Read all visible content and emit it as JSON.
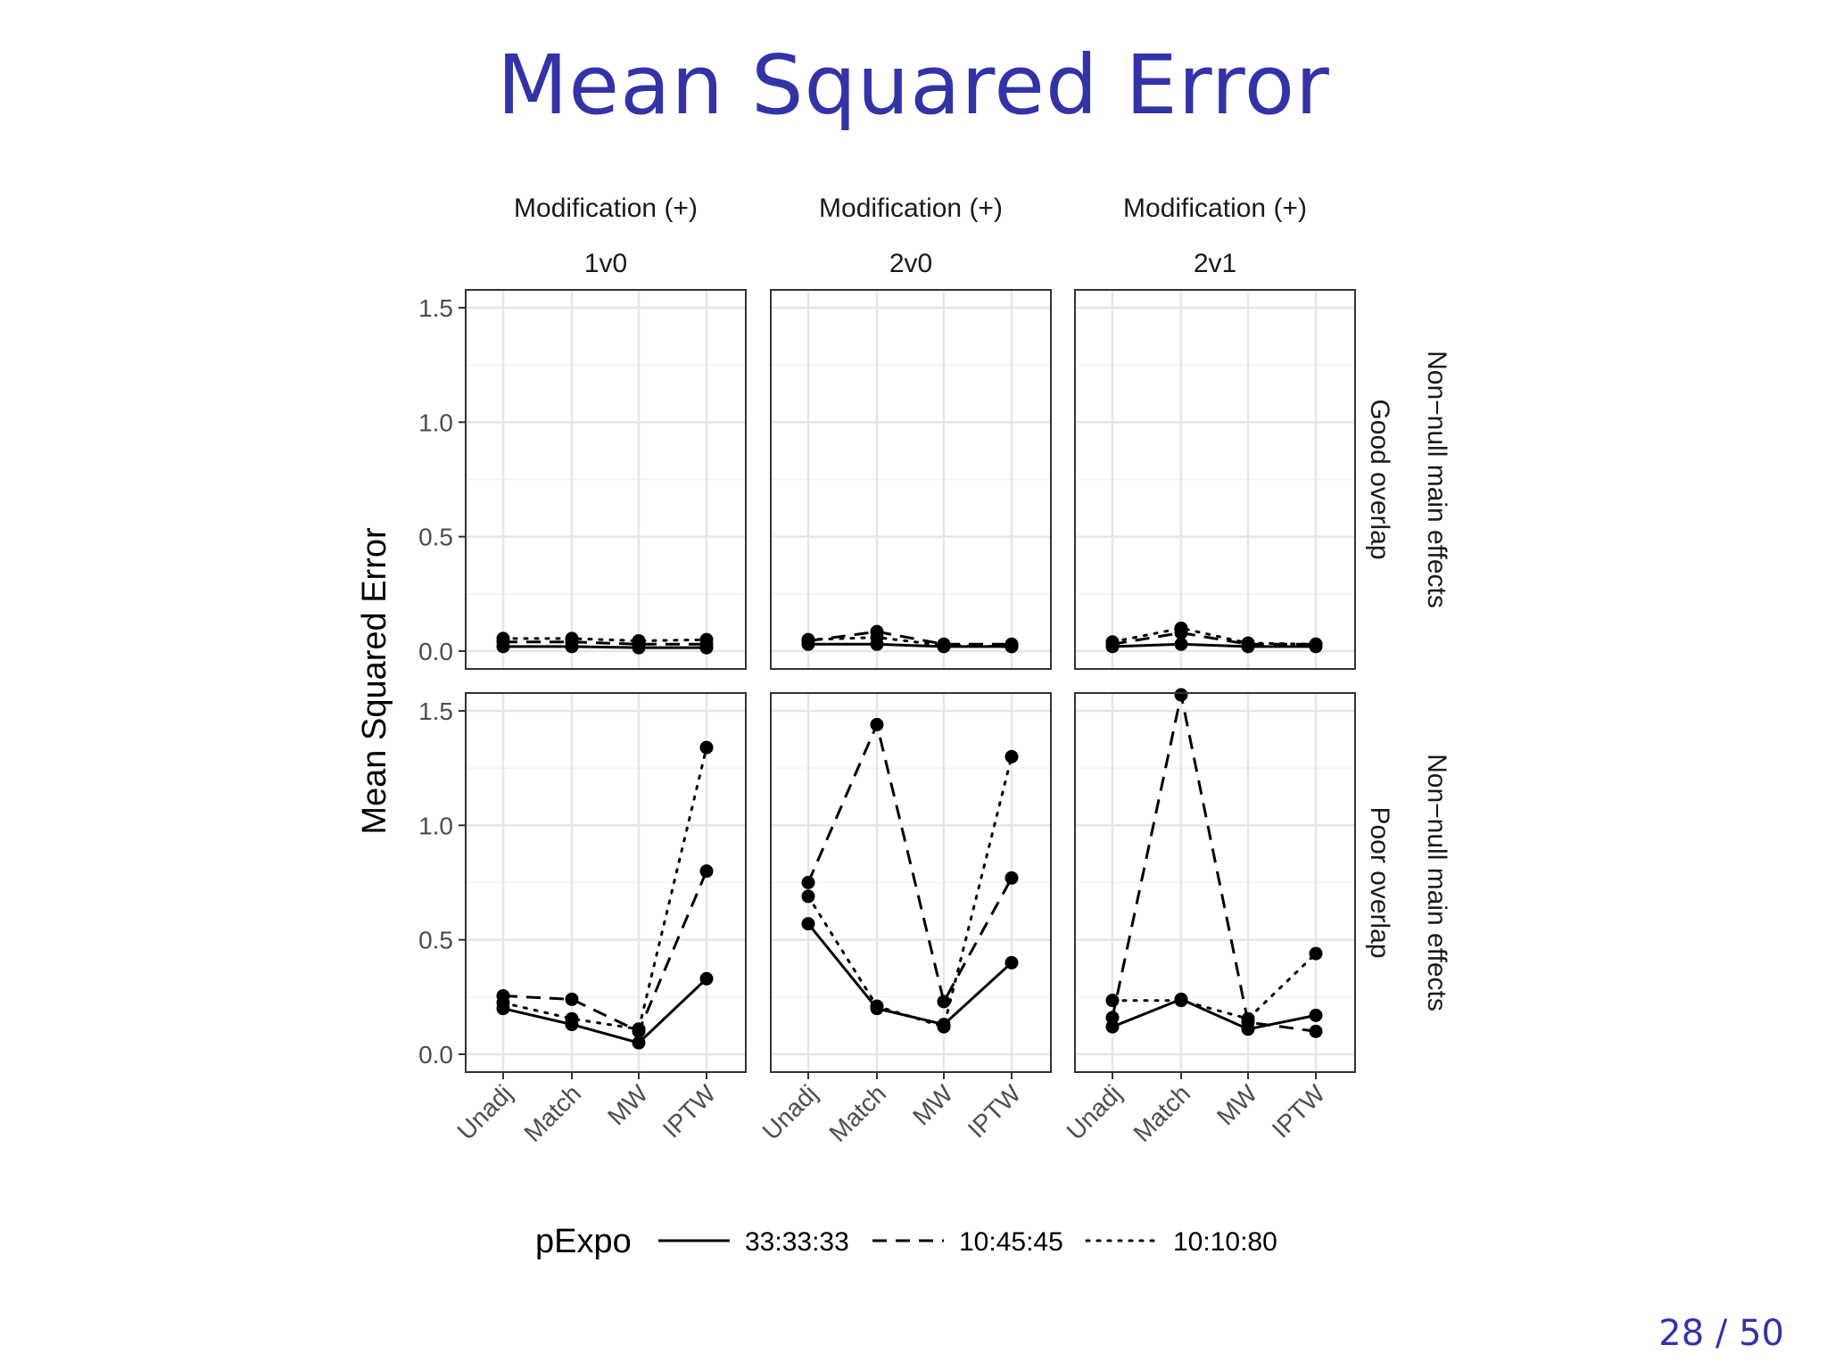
{
  "slide": {
    "title": "Mean Squared Error",
    "page_number": "28 / 50"
  },
  "chart_data": {
    "type": "line",
    "ylabel": "Mean Squared Error",
    "ylim": [
      0,
      1.5
    ],
    "y_ticks": [
      "0.0",
      "0.5",
      "1.0",
      "1.5"
    ],
    "categories": [
      "Unadj",
      "Match",
      "MW",
      "IPTW"
    ],
    "grid": true,
    "legend_title": "pExpo",
    "legend_position": "bottom",
    "column_strips": [
      {
        "line1": "Modification (+)",
        "line2": "1v0"
      },
      {
        "line1": "Modification (+)",
        "line2": "2v0"
      },
      {
        "line1": "Modification (+)",
        "line2": "2v1"
      }
    ],
    "row_strips": [
      {
        "line1": "Non−null main effects",
        "line2": "Good overlap"
      },
      {
        "line1": "Non−null main effects",
        "line2": "Poor overlap"
      }
    ],
    "series_styles": [
      {
        "name": "33:33:33",
        "dash": "solid"
      },
      {
        "name": "10:45:45",
        "dash": "dashed"
      },
      {
        "name": "10:10:80",
        "dash": "dotted"
      }
    ],
    "panels": [
      {
        "row": 0,
        "col": 0,
        "series": [
          {
            "name": "33:33:33",
            "values": [
              0.02,
              0.02,
              0.015,
              0.015
            ]
          },
          {
            "name": "10:45:45",
            "values": [
              0.04,
              0.04,
              0.03,
              0.03
            ]
          },
          {
            "name": "10:10:80",
            "values": [
              0.055,
              0.055,
              0.045,
              0.05
            ]
          }
        ]
      },
      {
        "row": 0,
        "col": 1,
        "series": [
          {
            "name": "33:33:33",
            "values": [
              0.03,
              0.03,
              0.02,
              0.02
            ]
          },
          {
            "name": "10:45:45",
            "values": [
              0.045,
              0.085,
              0.03,
              0.03
            ]
          },
          {
            "name": "10:10:80",
            "values": [
              0.05,
              0.06,
              0.025,
              0.02
            ]
          }
        ]
      },
      {
        "row": 0,
        "col": 2,
        "series": [
          {
            "name": "33:33:33",
            "values": [
              0.02,
              0.03,
              0.02,
              0.02
            ]
          },
          {
            "name": "10:45:45",
            "values": [
              0.03,
              0.08,
              0.03,
              0.03
            ]
          },
          {
            "name": "10:10:80",
            "values": [
              0.04,
              0.1,
              0.035,
              0.03
            ]
          }
        ]
      },
      {
        "row": 1,
        "col": 0,
        "series": [
          {
            "name": "33:33:33",
            "values": [
              0.2,
              0.13,
              0.05,
              0.33
            ]
          },
          {
            "name": "10:45:45",
            "values": [
              0.255,
              0.24,
              0.1,
              0.8
            ]
          },
          {
            "name": "10:10:80",
            "values": [
              0.225,
              0.155,
              0.11,
              1.34
            ]
          }
        ]
      },
      {
        "row": 1,
        "col": 1,
        "series": [
          {
            "name": "33:33:33",
            "values": [
              0.57,
              0.2,
              0.13,
              0.4
            ]
          },
          {
            "name": "10:45:45",
            "values": [
              0.75,
              1.44,
              0.23,
              0.77
            ]
          },
          {
            "name": "10:10:80",
            "values": [
              0.69,
              0.21,
              0.12,
              1.3
            ]
          }
        ]
      },
      {
        "row": 1,
        "col": 2,
        "series": [
          {
            "name": "33:33:33",
            "values": [
              0.12,
              0.24,
              0.11,
              0.17
            ]
          },
          {
            "name": "10:45:45",
            "values": [
              0.16,
              1.57,
              0.14,
              0.1
            ]
          },
          {
            "name": "10:10:80",
            "values": [
              0.235,
              0.235,
              0.155,
              0.44
            ]
          }
        ]
      }
    ]
  }
}
